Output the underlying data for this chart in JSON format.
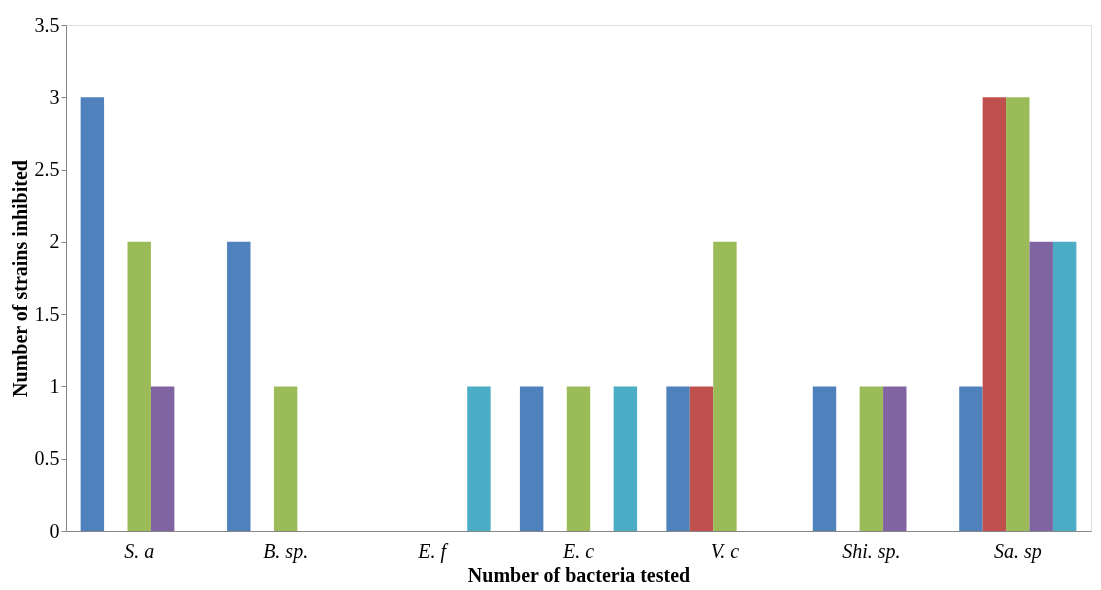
{
  "chart_data": {
    "type": "bar",
    "xlabel": "Number of bacteria tested",
    "ylabel": "Number of strains inhibited",
    "categories": [
      "S. a",
      "B. sp.",
      "E. f",
      "E. c",
      "V. c",
      "Shi. sp.",
      "Sa. sp"
    ],
    "series": [
      {
        "color": "#4f81bd",
        "values": [
          3,
          2,
          0,
          1,
          1,
          1,
          1
        ]
      },
      {
        "color": "#c0504d",
        "values": [
          0,
          0,
          0,
          0,
          1,
          0,
          3
        ]
      },
      {
        "color": "#9bbb59",
        "values": [
          2,
          1,
          0,
          1,
          2,
          1,
          3
        ]
      },
      {
        "color": "#8064a2",
        "values": [
          1,
          0,
          0,
          0,
          0,
          1,
          2
        ]
      },
      {
        "color": "#4bacc6",
        "values": [
          0,
          0,
          1,
          1,
          0,
          0,
          2
        ]
      }
    ],
    "ylim": [
      0,
      3.5
    ],
    "yticks": [
      0,
      0.5,
      1,
      1.5,
      2,
      2.5,
      3,
      3.5
    ],
    "grid": false,
    "legend": false
  }
}
